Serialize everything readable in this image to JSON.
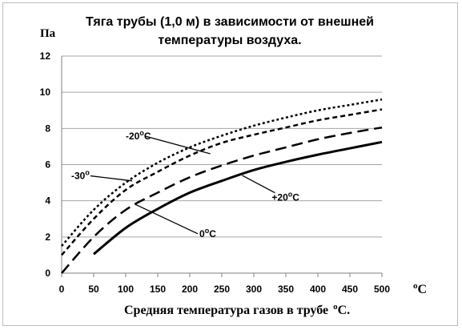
{
  "chart_data": {
    "type": "line",
    "title": [
      "Тяга  трубы (1,0 м)  в  зависимости  от внешней",
      "температуры воздуха."
    ],
    "ylabel": "Па",
    "xlabel": "Средняя  температура  газов  в  трубе",
    "xlabel_unit_sup": "o",
    "xlabel_unit": "С.",
    "x_unit_sup": "o",
    "x_unit": "C",
    "xlim": [
      0,
      500
    ],
    "ylim": [
      0,
      12
    ],
    "x_ticks": [
      "0",
      "50",
      "100",
      "150",
      "200",
      "250",
      "300",
      "350",
      "400",
      "450",
      "500"
    ],
    "y_ticks": [
      "0",
      "2",
      "4",
      "6",
      "8",
      "10",
      "12"
    ],
    "grid": "horizontal",
    "series": [
      {
        "name": "-30°",
        "label_parts": [
          "-30",
          "o"
        ],
        "dash": "3 3",
        "width": 2.5,
        "x": [
          0,
          50,
          100,
          150,
          200,
          250,
          300,
          350,
          400,
          450,
          500
        ],
        "y": [
          1.5,
          3.5,
          5.0,
          6.1,
          6.95,
          7.6,
          8.15,
          8.6,
          9.0,
          9.3,
          9.6
        ]
      },
      {
        "name": "-20°C",
        "label_parts": [
          "-20",
          "o",
          "C"
        ],
        "dash": "6 4",
        "width": 2.5,
        "x": [
          0,
          50,
          100,
          150,
          200,
          250,
          300,
          350,
          400,
          450,
          500
        ],
        "y": [
          1.0,
          3.0,
          4.6,
          5.6,
          6.5,
          7.2,
          7.65,
          8.05,
          8.45,
          8.75,
          9.05
        ]
      },
      {
        "name": "0°C",
        "label_parts": [
          "0",
          "o",
          "C"
        ],
        "dash": "14 7",
        "width": 2.5,
        "x": [
          0,
          50,
          100,
          150,
          200,
          250,
          300,
          350,
          400,
          450,
          500
        ],
        "y": [
          0.0,
          2.0,
          3.5,
          4.45,
          5.3,
          5.95,
          6.5,
          6.95,
          7.4,
          7.75,
          8.05
        ]
      },
      {
        "name": "+20°C",
        "label_parts": [
          "+20",
          "o",
          "C"
        ],
        "dash": "",
        "width": 3,
        "x": [
          50,
          100,
          150,
          200,
          250,
          300,
          350,
          400,
          450,
          500
        ],
        "y": [
          1.05,
          2.5,
          3.55,
          4.45,
          5.1,
          5.7,
          6.15,
          6.55,
          6.9,
          7.25
        ]
      }
    ],
    "annotations": [
      {
        "series": "-20°C",
        "text_parts": [
          "-20",
          "o",
          "C"
        ],
        "text_at": [
          100,
          7.4
        ],
        "arrow_to": [
          232,
          6.6
        ]
      },
      {
        "series": "-30°",
        "text_parts": [
          "-30",
          "o"
        ],
        "text_at": [
          15,
          5.2
        ],
        "arrow_to": [
          110,
          5.1
        ]
      },
      {
        "series": "0°C",
        "text_parts": [
          "0",
          "o",
          "C"
        ],
        "text_at": [
          215,
          2.0
        ],
        "arrow_to": [
          115,
          3.8
        ]
      },
      {
        "series": "+20°C",
        "text_parts": [
          "+20",
          "o",
          "C"
        ],
        "text_at": [
          328,
          4.0
        ],
        "arrow_to": [
          282,
          5.4
        ]
      }
    ]
  }
}
